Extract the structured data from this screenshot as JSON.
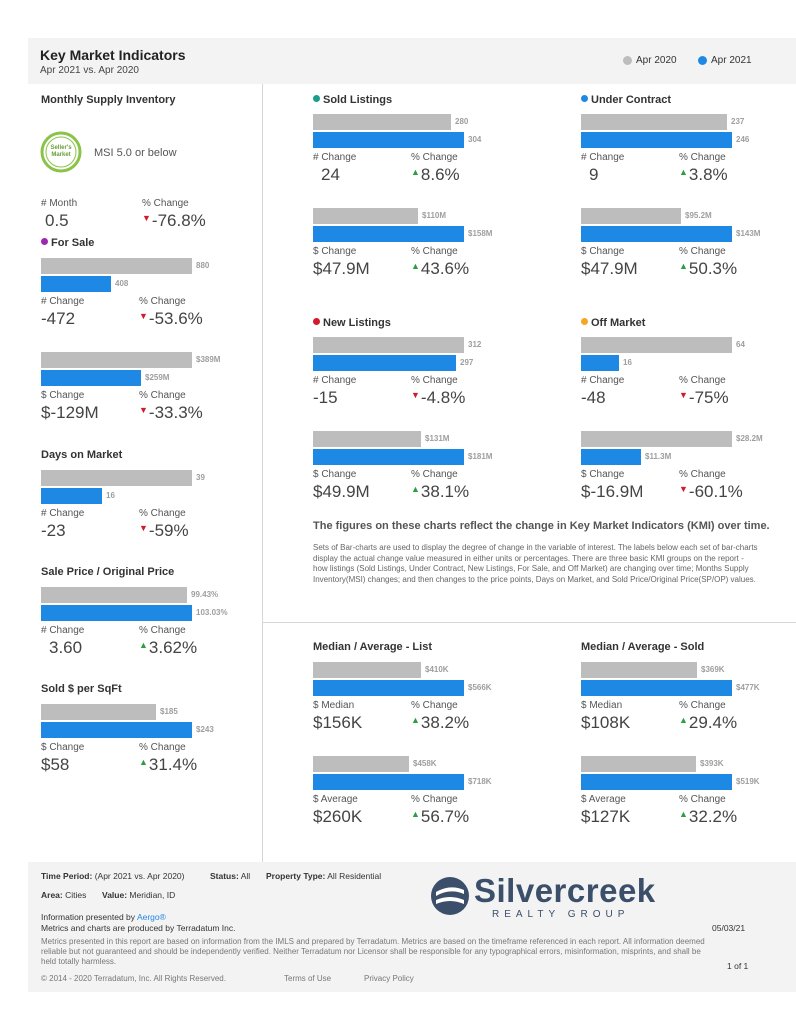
{
  "header": {
    "title": "Key Market Indicators",
    "subtitle": "Apr 2021 vs. Apr 2020",
    "legend_2020": "Apr 2020",
    "legend_2021": "Apr 2021",
    "color_2020": "#bdbdbd",
    "color_2021": "#1e88e5"
  },
  "msi": {
    "title": "Monthly Supply Inventory",
    "badge_text": "Seller's Market",
    "badge_label": "MSI 5.0 or below",
    "month_label": "# Month",
    "month_value": "0.5",
    "pct_label": "% Change",
    "pct_value": "-76.8%"
  },
  "for_sale": {
    "title": "For Sale",
    "dot_color": "#9c27b0",
    "count": {
      "prev": "880",
      "curr": "408",
      "prev_frac": 0.96,
      "curr_frac": 0.445,
      "c_label": "# Change",
      "c_value": "-472",
      "p_label": "% Change",
      "p_value": "-53.6%"
    },
    "dollar": {
      "prev": "$389M",
      "curr": "$259M",
      "prev_frac": 0.96,
      "curr_frac": 0.64,
      "c_label": "$ Change",
      "c_value": "$-129M",
      "p_label": "% Change",
      "p_value": "-33.3%"
    }
  },
  "dom": {
    "title": "Days on Market",
    "prev": "39",
    "curr": "16",
    "prev_frac": 0.96,
    "curr_frac": 0.39,
    "c_label": "# Change",
    "c_value": "-23",
    "p_label": "% Change",
    "p_value": "-59%"
  },
  "sp_op": {
    "title": "Sale Price / Original Price",
    "prev": "99.43%",
    "curr": "103.03%",
    "prev_frac": 0.93,
    "curr_frac": 0.96,
    "c_label": "# Change",
    "c_value": "3.60",
    "p_label": "% Change",
    "p_value": "3.62%"
  },
  "sqft": {
    "title": "Sold $ per SqFt",
    "prev": "$185",
    "curr": "$243",
    "prev_frac": 0.73,
    "curr_frac": 0.96,
    "c_label": "$ Change",
    "c_value": "$58",
    "p_label": "% Change",
    "p_value": "31.4%"
  },
  "sold": {
    "title": "Sold Listings",
    "dot_color": "#1a9e8a",
    "count": {
      "prev": "280",
      "curr": "304",
      "prev_frac": 0.88,
      "curr_frac": 0.96,
      "c_label": "# Change",
      "c_value": "24",
      "p_label": "% Change",
      "p_value": "8.6%"
    },
    "dollar": {
      "prev": "$110M",
      "curr": "$158M",
      "prev_frac": 0.67,
      "curr_frac": 0.96,
      "c_label": "$ Change",
      "c_value": "$47.9M",
      "p_label": "% Change",
      "p_value": "43.6%"
    }
  },
  "under_contract": {
    "title": "Under Contract",
    "dot_color": "#1e88e5",
    "count": {
      "prev": "237",
      "curr": "246",
      "prev_frac": 0.93,
      "curr_frac": 0.96,
      "c_label": "# Change",
      "c_value": "9",
      "p_label": "% Change",
      "p_value": "3.8%"
    },
    "dollar": {
      "prev": "$95.2M",
      "curr": "$143M",
      "prev_frac": 0.64,
      "curr_frac": 0.96,
      "c_label": "$ Change",
      "c_value": "$47.9M",
      "p_label": "% Change",
      "p_value": "50.3%"
    }
  },
  "new_listings": {
    "title": "New Listings",
    "dot_color": "#d11a2a",
    "count": {
      "prev": "312",
      "curr": "297",
      "prev_frac": 0.96,
      "curr_frac": 0.91,
      "c_label": "# Change",
      "c_value": "-15",
      "p_label": "% Change",
      "p_value": "-4.8%"
    },
    "dollar": {
      "prev": "$131M",
      "curr": "$181M",
      "prev_frac": 0.69,
      "curr_frac": 0.96,
      "c_label": "$ Change",
      "c_value": "$49.9M",
      "p_label": "% Change",
      "p_value": "38.1%"
    }
  },
  "off_market": {
    "title": "Off Market",
    "dot_color": "#f5a623",
    "count": {
      "prev": "64",
      "curr": "16",
      "prev_frac": 0.96,
      "curr_frac": 0.24,
      "c_label": "# Change",
      "c_value": "-48",
      "p_label": "% Change",
      "p_value": "-75%"
    },
    "dollar": {
      "prev": "$28.2M",
      "curr": "$11.3M",
      "prev_frac": 0.96,
      "curr_frac": 0.38,
      "c_label": "$ Change",
      "c_value": "$-16.9M",
      "p_label": "% Change",
      "p_value": "-60.1%"
    }
  },
  "explanation": {
    "heading": "The figures on these charts reflect the change in Key Market Indicators (KMI) over time.",
    "body": "Sets of Bar-charts are used to display the degree of change in the variable of interest. The labels below each set of bar-charts display the actual change value measured in either units or percentages. There are three basic KMI groups on the report - how listings (Sold Listings, Under Contract, New Listings, For Sale, and Off Market) are changing over time; Months Supply Inventory(MSI) changes; and then changes to the price points, Days on Market, and Sold Price/Original Price(SP/OP) values."
  },
  "list_prices": {
    "title": "Median / Average - List",
    "median": {
      "prev": "$410K",
      "curr": "$566K",
      "prev_frac": 0.69,
      "curr_frac": 0.96,
      "c_label": "$ Median",
      "c_value": "$156K",
      "p_label": "% Change",
      "p_value": "38.2%"
    },
    "average": {
      "prev": "$458K",
      "curr": "$718K",
      "prev_frac": 0.61,
      "curr_frac": 0.96,
      "c_label": "$ Average",
      "c_value": "$260K",
      "p_label": "% Change",
      "p_value": "56.7%"
    }
  },
  "sold_prices": {
    "title": "Median / Average - Sold",
    "median": {
      "prev": "$369K",
      "curr": "$477K",
      "prev_frac": 0.74,
      "curr_frac": 0.96,
      "c_label": "$ Median",
      "c_value": "$108K",
      "p_label": "% Change",
      "p_value": "29.4%"
    },
    "average": {
      "prev": "$393K",
      "curr": "$519K",
      "prev_frac": 0.73,
      "curr_frac": 0.96,
      "c_label": "$ Average",
      "c_value": "$127K",
      "p_label": "% Change",
      "p_value": "32.2%"
    }
  },
  "footer": {
    "time_period_label": "Time Period:",
    "time_period_value": "(Apr 2021 vs. Apr 2020)",
    "status_label": "Status:",
    "status_value": "All",
    "property_type_label": "Property Type:",
    "property_type_value": "All Residential",
    "area_label": "Area:",
    "area_value": "Cities",
    "value_label": "Value:",
    "value_value": "Meridian, ID",
    "presented_by": "Information presented by",
    "aergo": "Aergo®",
    "produced_by": "Metrics and charts are produced by Terradatum Inc.",
    "disclaimer": "Metrics presented in this report are based on information from the IMLS and prepared by Terradatum. Metrics are based on the timeframe referenced in each report. All information deemed reliable but not guaranteed and should be independently verified. Neither Terradatum nor Licensor shall be responsible for any typographical errors, misinformation, misprints, and shall be held totally harmless.",
    "copyright": "© 2014 - 2020 Terradatum, Inc. All Rights Reserved.",
    "terms": "Terms of Use",
    "privacy": "Privacy Policy",
    "brand_name": "Silvercreek",
    "brand_sub": "REALTY GROUP",
    "date": "05/03/21",
    "page": "1 of 1"
  }
}
